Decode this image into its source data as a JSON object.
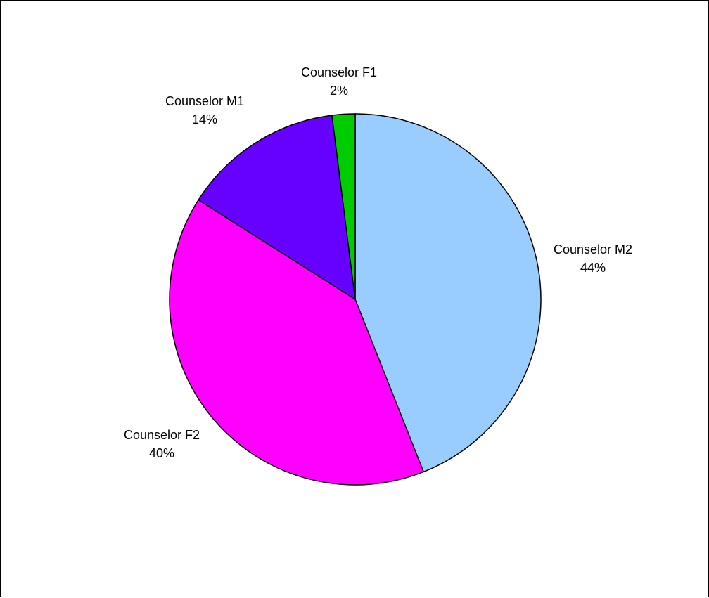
{
  "chart_data": {
    "type": "pie",
    "title": "",
    "slices": [
      {
        "label": "Counselor M2",
        "value": 44,
        "value_label": "44%",
        "color": "#99ccff"
      },
      {
        "label": "Counselor F2",
        "value": 40,
        "value_label": "40%",
        "color": "#ff00ff"
      },
      {
        "label": "Counselor M1",
        "value": 14,
        "value_label": "14%",
        "color": "#6600ff"
      },
      {
        "label": "Counselor F1",
        "value": 2,
        "value_label": "2%",
        "color": "#00cc00"
      }
    ],
    "start_angle_deg": 0,
    "direction": "clockwise",
    "legend": "none",
    "border_color": "#000000"
  }
}
